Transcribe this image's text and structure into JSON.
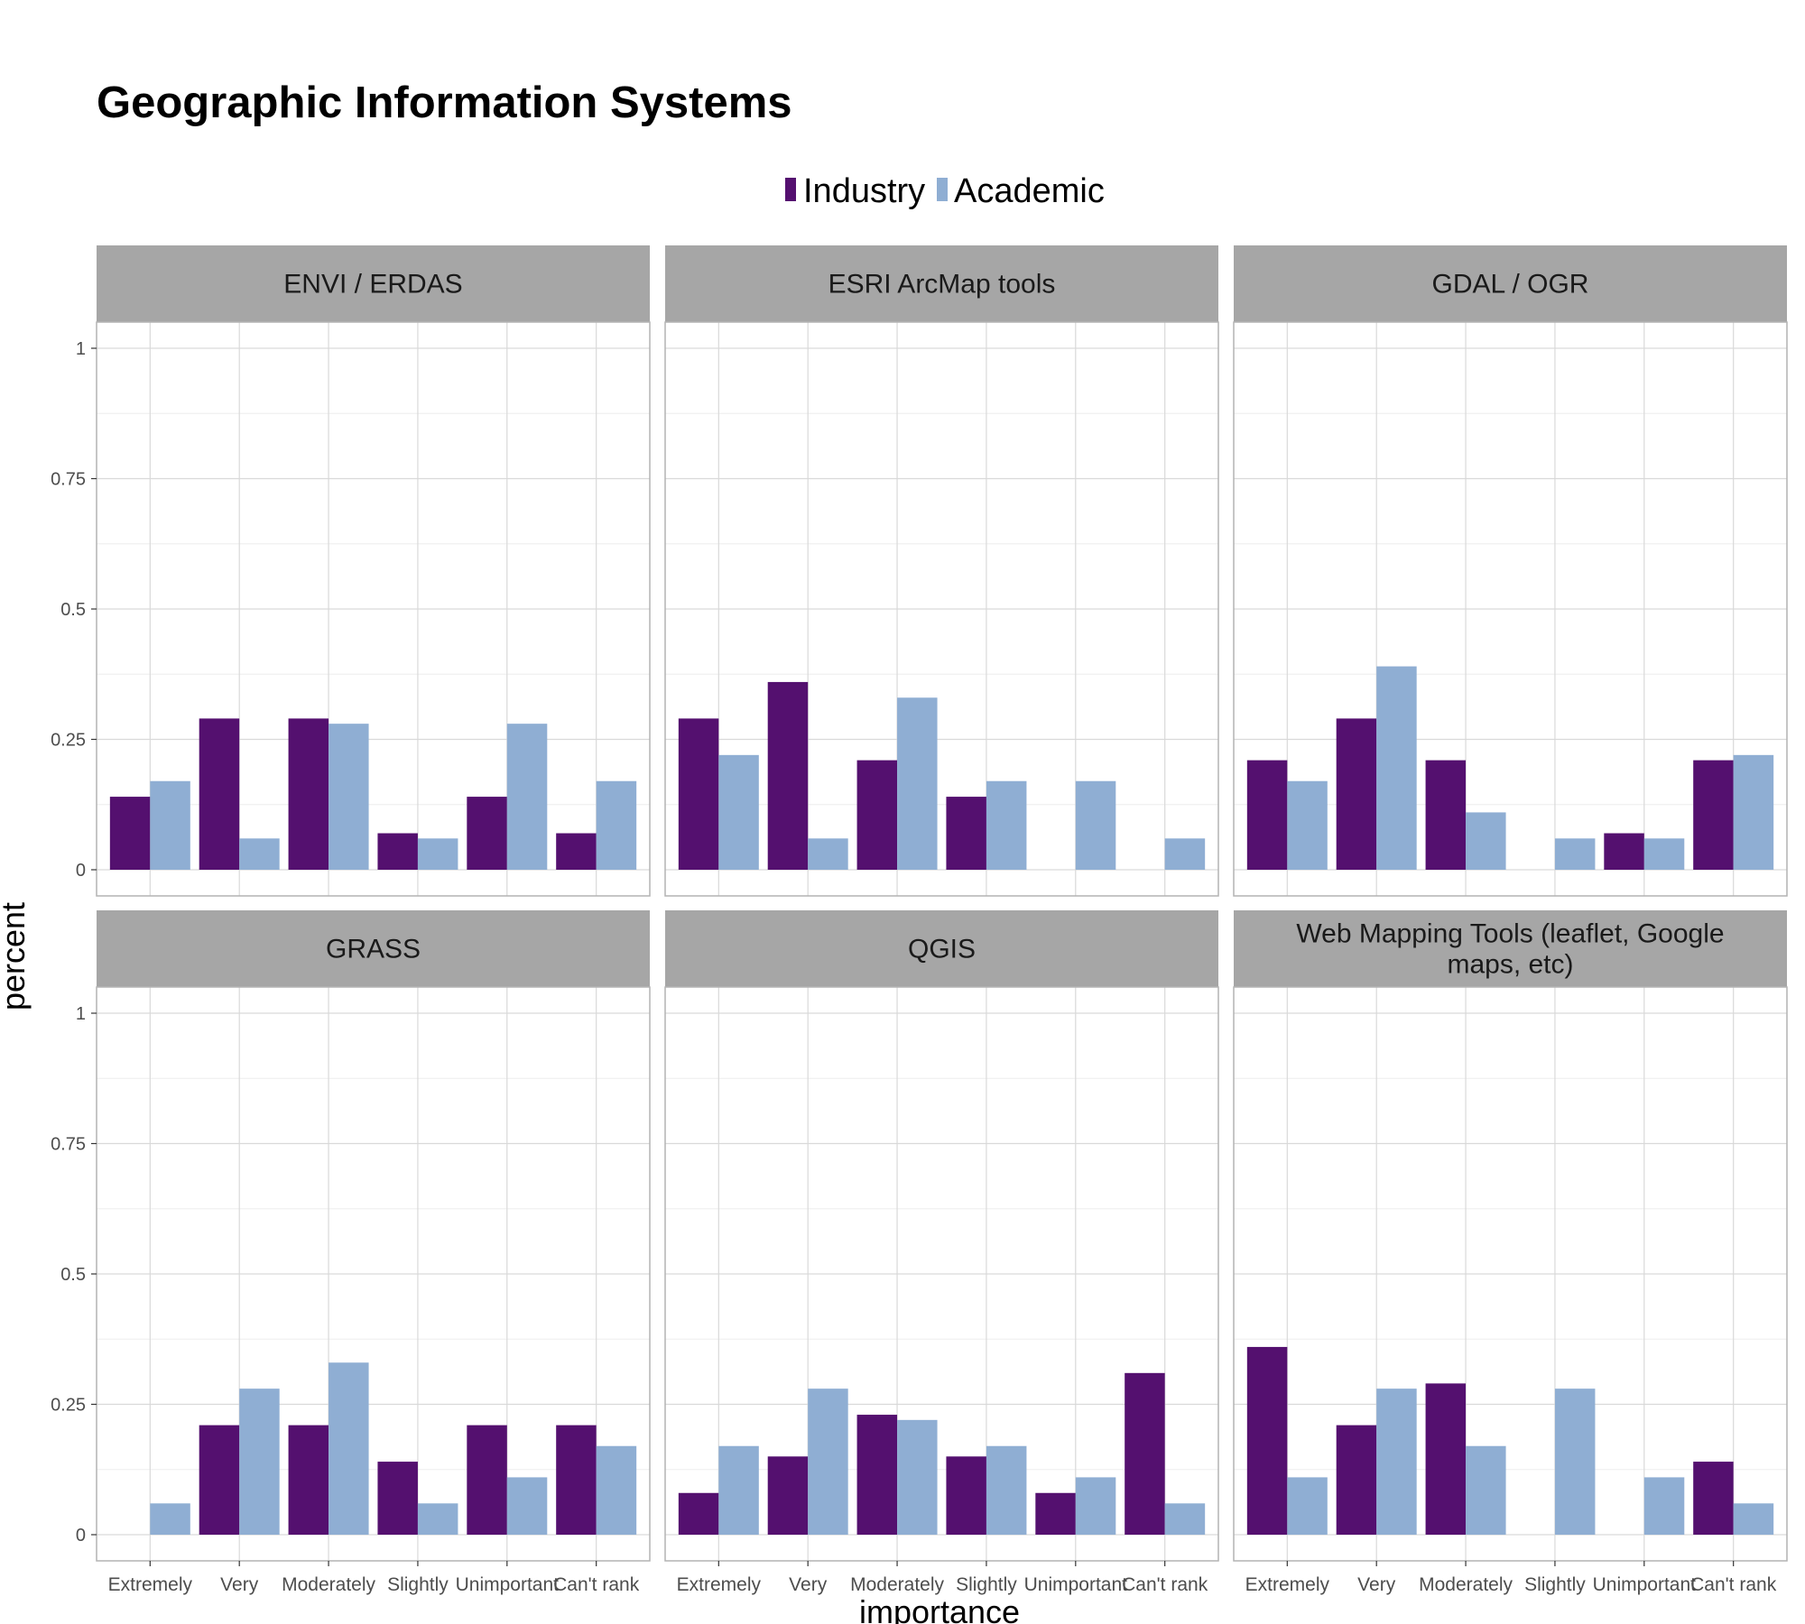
{
  "chart_data": {
    "type": "bar",
    "title": "Geographic Information Systems",
    "xlabel": "importance",
    "ylabel": "percent",
    "categories": [
      "Extremely",
      "Very",
      "Moderately",
      "Slightly",
      "Unimportant",
      "Can't rank"
    ],
    "ylim": [
      0,
      1.05
    ],
    "yticks": [
      0,
      0.25,
      0.5,
      0.75,
      1
    ],
    "ytick_labels": [
      "0",
      "0.25",
      "0.5",
      "0.75",
      "1"
    ],
    "grid": true,
    "legend": {
      "position": "top",
      "entries": [
        {
          "name": "Industry",
          "color": "#54106f"
        },
        {
          "name": "Academic",
          "color": "#8faed3"
        }
      ]
    },
    "colors": {
      "strip_background": "#a6a6a6",
      "panel_border": "#b3b3b3",
      "grid_major": "#d9d9d9",
      "grid_minor": "#ededed"
    },
    "panels": [
      {
        "title": "ENVI / ERDAS",
        "series": [
          {
            "name": "Industry",
            "values": [
              0.14,
              0.29,
              0.29,
              0.07,
              0.14,
              0.07
            ]
          },
          {
            "name": "Academic",
            "values": [
              0.17,
              0.06,
              0.28,
              0.06,
              0.28,
              0.17
            ]
          }
        ]
      },
      {
        "title": "ESRI ArcMap tools",
        "series": [
          {
            "name": "Industry",
            "values": [
              0.29,
              0.36,
              0.21,
              0.14,
              0,
              0
            ]
          },
          {
            "name": "Academic",
            "values": [
              0.22,
              0.06,
              0.33,
              0.17,
              0.17,
              0.06
            ]
          }
        ]
      },
      {
        "title": "GDAL / OGR",
        "series": [
          {
            "name": "Industry",
            "values": [
              0.21,
              0.29,
              0.21,
              0,
              0.07,
              0.21
            ]
          },
          {
            "name": "Academic",
            "values": [
              0.17,
              0.39,
              0.11,
              0.06,
              0.06,
              0.22
            ]
          }
        ]
      },
      {
        "title": "GRASS",
        "series": [
          {
            "name": "Industry",
            "values": [
              0,
              0.21,
              0.21,
              0.14,
              0.21,
              0.21
            ]
          },
          {
            "name": "Academic",
            "values": [
              0.06,
              0.28,
              0.33,
              0.06,
              0.11,
              0.17
            ]
          }
        ]
      },
      {
        "title": "QGIS",
        "series": [
          {
            "name": "Industry",
            "values": [
              0.08,
              0.15,
              0.23,
              0.15,
              0.08,
              0.31
            ]
          },
          {
            "name": "Academic",
            "values": [
              0.17,
              0.28,
              0.22,
              0.17,
              0.11,
              0.06
            ]
          }
        ]
      },
      {
        "title": "Web Mapping Tools (leaflet, Google maps, etc)",
        "title_lines": [
          "Web Mapping Tools (leaflet, Google",
          "maps, etc)"
        ],
        "series": [
          {
            "name": "Industry",
            "values": [
              0.36,
              0.21,
              0.29,
              0,
              0,
              0.14
            ]
          },
          {
            "name": "Academic",
            "values": [
              0.11,
              0.28,
              0.17,
              0.28,
              0.11,
              0.06
            ]
          }
        ]
      }
    ]
  }
}
